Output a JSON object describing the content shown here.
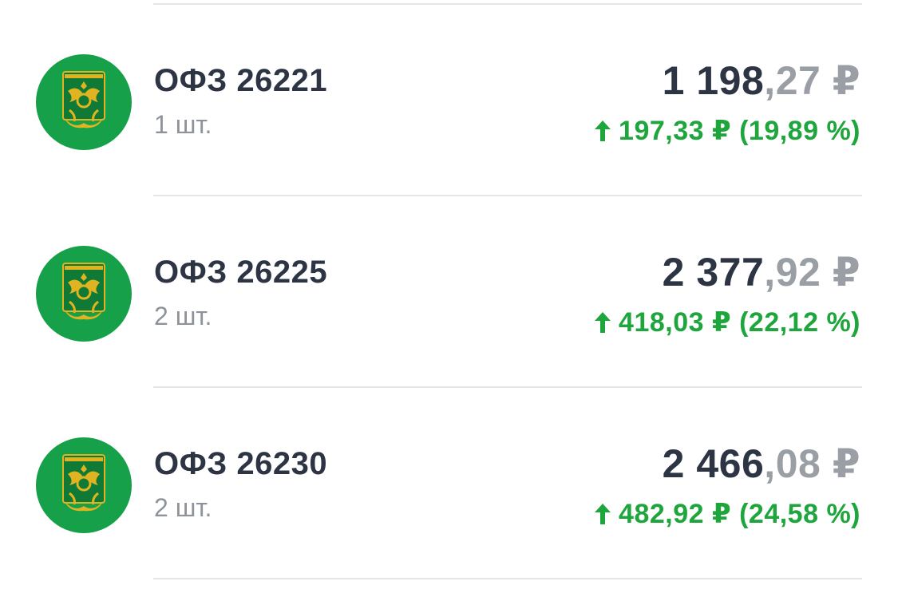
{
  "colors": {
    "title": "#2d3544",
    "muted": "#8e939b",
    "gain": "#1ea53c",
    "logo_bg": "#16a04a",
    "emblem": "#e2b321",
    "divider": "#e3e5e8"
  },
  "bonds": [
    {
      "name": "ОФЗ 26221",
      "qty": "1 шт.",
      "price_int": "1 198",
      "price_frac": ",27",
      "currency": " ₽",
      "change": "197,33 ₽ (19,89 %)",
      "icon": "minfin-emblem-icon"
    },
    {
      "name": "ОФЗ 26225",
      "qty": "2 шт.",
      "price_int": "2 377",
      "price_frac": ",92",
      "currency": " ₽",
      "change": "418,03 ₽ (22,12 %)",
      "icon": "minfin-emblem-icon"
    },
    {
      "name": "ОФЗ 26230",
      "qty": "2 шт.",
      "price_int": "2 466",
      "price_frac": ",08",
      "currency": " ₽",
      "change": "482,92 ₽ (24,58 %)",
      "icon": "minfin-emblem-icon"
    }
  ]
}
